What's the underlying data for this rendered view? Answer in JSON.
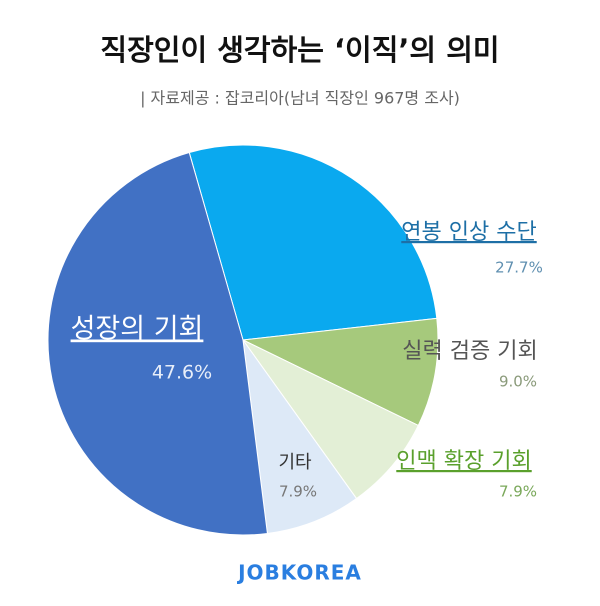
{
  "chart_data": {
    "type": "pie",
    "title": "직장인이 생각하는 ‘이직’의 의미",
    "subtitle": "| 자료제공 : 잡코리아(남녀 직장인 967명 조사)",
    "source": "JOBKOREA",
    "categories": [
      "연봉 인상 수단",
      "실력 검증 기회",
      "인맥 확장 기회",
      "기타",
      "성장의 기회"
    ],
    "values": [
      27.7,
      9.0,
      7.9,
      7.9,
      47.6
    ],
    "value_labels": [
      "27.7%",
      "9.0%",
      "7.9%",
      "7.9%",
      "47.6%"
    ],
    "colors": [
      "#0aa9ef",
      "#a6c97c",
      "#e3efd6",
      "#dde9f7",
      "#4171c4"
    ]
  }
}
